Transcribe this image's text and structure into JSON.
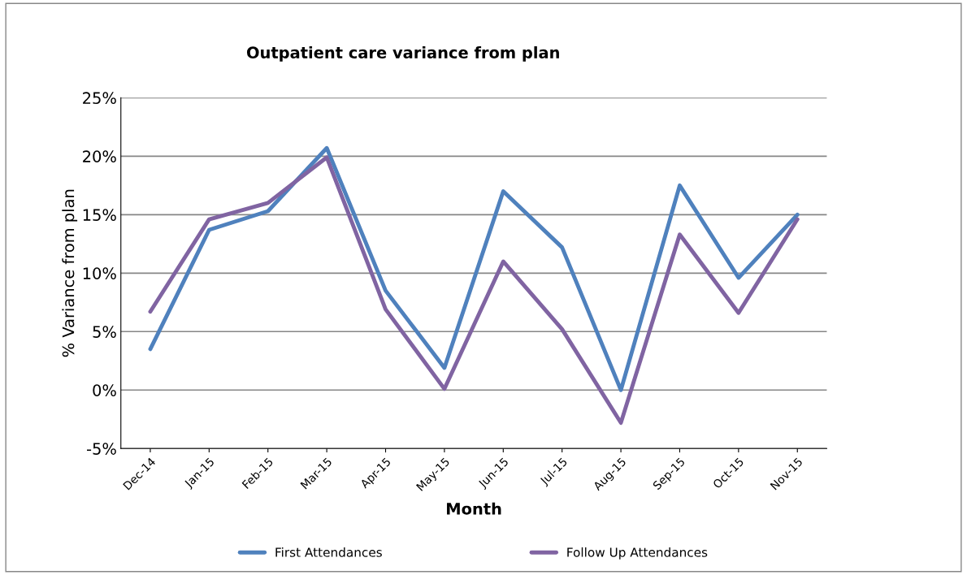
{
  "chart_data": {
    "type": "line",
    "title": "Outpatient care variance from plan",
    "xlabel": "Month",
    "ylabel": "% Variance from plan",
    "categories": [
      "Dec-14",
      "Jan-15",
      "Feb-15",
      "Mar-15",
      "Apr-15",
      "May-15",
      "Jun-15",
      "Jul-15",
      "Aug-15",
      "Sep-15",
      "Oct-15",
      "Nov-15"
    ],
    "series": [
      {
        "name": "First Attendances",
        "color": "#4f81bd",
        "values": [
          3.5,
          13.7,
          15.3,
          20.7,
          8.5,
          1.9,
          17.0,
          12.2,
          0.0,
          17.5,
          9.6,
          15.0
        ]
      },
      {
        "name": "Follow Up Attendances",
        "color": "#8064a2",
        "values": [
          6.7,
          14.6,
          16.0,
          19.9,
          6.9,
          0.1,
          11.0,
          5.2,
          -2.8,
          13.3,
          6.6,
          14.6
        ]
      }
    ],
    "ylim": [
      -5,
      25
    ],
    "yticks": [
      {
        "value": -5,
        "label": "-5%"
      },
      {
        "value": 0,
        "label": "0%"
      },
      {
        "value": 5,
        "label": "5%"
      },
      {
        "value": 10,
        "label": "10%"
      },
      {
        "value": 15,
        "label": "15%"
      },
      {
        "value": 20,
        "label": "20%"
      },
      {
        "value": 25,
        "label": "25%"
      }
    ],
    "grid": "y",
    "legend": "bottom",
    "marker": "none",
    "line_style": "solid"
  }
}
